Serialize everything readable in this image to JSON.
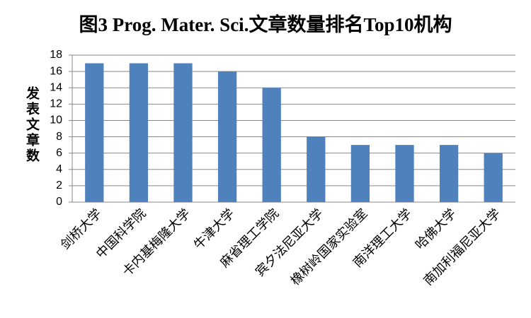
{
  "chart_data": {
    "type": "bar",
    "title": "图3 Prog. Mater. Sci.文章数量排名Top10机构",
    "y_label": "发表文章数",
    "categories": [
      "剑桥大学",
      "中国科学院",
      "卡内基梅隆大学",
      "牛津大学",
      "麻省理工学院",
      "宾夕法尼亚大学",
      "橡树岭国家实验室",
      "南洋理工大学",
      "哈佛大学",
      "南加利福尼亚大学"
    ],
    "values": [
      17,
      17,
      17,
      16,
      14,
      8,
      7,
      7,
      7,
      6
    ],
    "color": "#4f81bd",
    "ylim": [
      0,
      18
    ],
    "yticks": [
      0,
      2,
      4,
      6,
      8,
      10,
      12,
      14,
      16,
      18
    ],
    "grid": true
  }
}
